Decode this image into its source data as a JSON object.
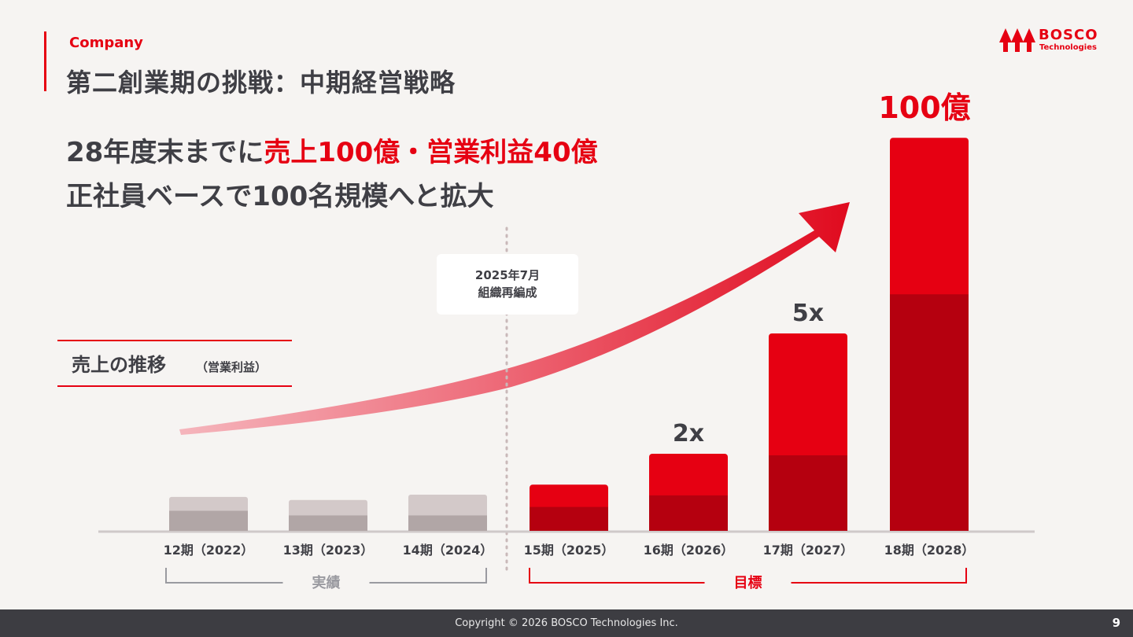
{
  "header": {
    "section_label": "Company",
    "title": "第二創業期の挑戦：中期経営戦略",
    "logo_name": "BOSCO",
    "logo_sub": "Technologies"
  },
  "headline": {
    "line1_prefix": "28年度末までに",
    "line1_highlight": "売上100億・営業利益40億",
    "line2": "正社員ベースで100名規模へと拡大"
  },
  "badge": {
    "line1": "2025年7月",
    "line2": "組織再編成"
  },
  "sales_label": {
    "title": "売上の推移",
    "sub": "（営業利益）"
  },
  "groups": {
    "actual": "実績",
    "target": "目標"
  },
  "footer": {
    "copyright": "Copyright © 2026 BOSCO Technologies Inc.",
    "page": "9"
  },
  "colors": {
    "accent": "#e60012",
    "target_sales": "#e60012",
    "target_profit": "#b5000f",
    "actual_sales": "#d3c9c9",
    "actual_profit": "#b1a6a6",
    "text": "#3f3f45"
  },
  "chart_data": {
    "type": "bar",
    "categories": [
      "12期（2022）",
      "13期（2023）",
      "14期（2024）",
      "15期（2025）",
      "16期（2026）",
      "17期（2027）",
      "18期（2028）"
    ],
    "series": [
      {
        "name": "売上",
        "values": [
          4.4,
          4.0,
          4.7,
          6.0,
          10.0,
          25.0,
          100.0
        ]
      },
      {
        "name": "営業利益",
        "values": [
          2.6,
          2.0,
          2.0,
          3.1,
          4.6,
          9.8,
          40.0
        ]
      }
    ],
    "group_of": [
      "actual",
      "actual",
      "actual",
      "target",
      "target",
      "target",
      "target"
    ],
    "annotations": [
      "",
      "",
      "",
      "",
      "2x",
      "5x",
      "100億"
    ],
    "stacked_overlay": true,
    "ylim": [
      0,
      100
    ],
    "scale": "nonlinear"
  }
}
